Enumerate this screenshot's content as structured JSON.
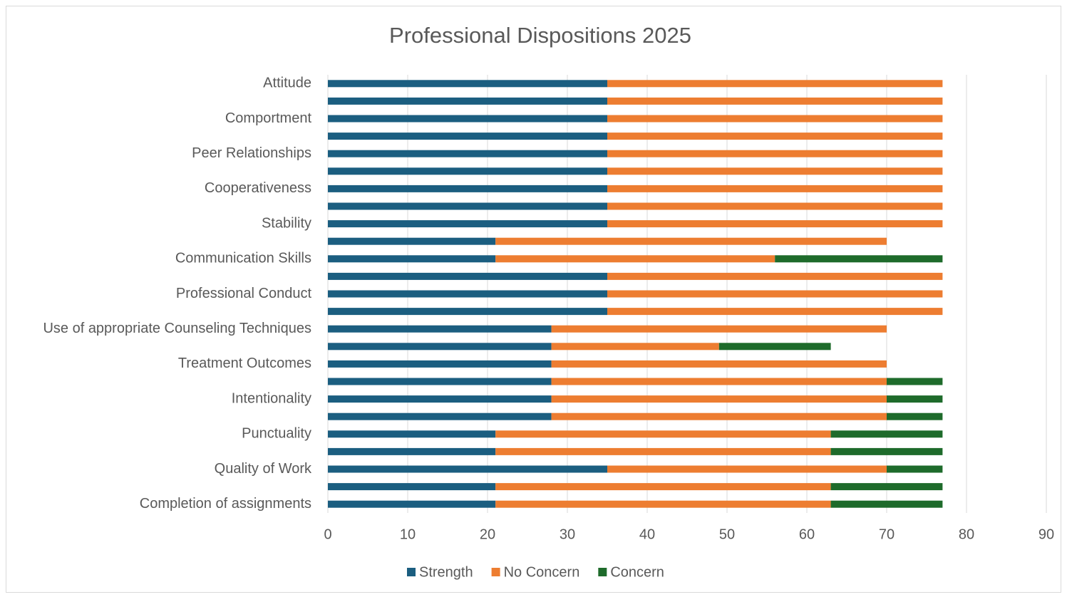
{
  "chart_data": {
    "type": "bar",
    "orientation": "horizontal",
    "stacked": true,
    "title": "Professional Dispositions 2025",
    "categories": [
      "Attitude",
      null,
      "Comportment",
      null,
      "Peer Relationships",
      null,
      "Cooperativeness",
      null,
      "Stability",
      null,
      "Communication Skills",
      null,
      "Professional Conduct",
      null,
      "Use of appropriate Counseling Techniques",
      null,
      "Treatment Outcomes",
      null,
      "Intentionality",
      null,
      "Punctuality",
      null,
      "Quality of Work",
      null,
      "Completion of assignments"
    ],
    "series": [
      {
        "name": "Strength",
        "color": "#1b5e80",
        "values": [
          35,
          35,
          35,
          35,
          35,
          35,
          35,
          35,
          35,
          21,
          21,
          35,
          35,
          35,
          28,
          28,
          28,
          28,
          28,
          28,
          21,
          21,
          35,
          21,
          21
        ]
      },
      {
        "name": "No Concern",
        "color": "#ed7d31",
        "values": [
          42,
          42,
          42,
          42,
          42,
          42,
          42,
          42,
          42,
          49,
          35,
          42,
          42,
          42,
          42,
          21,
          42,
          42,
          42,
          42,
          42,
          42,
          35,
          42,
          42
        ]
      },
      {
        "name": "Concern",
        "color": "#1e6b2b",
        "values": [
          0,
          0,
          0,
          0,
          0,
          0,
          0,
          0,
          0,
          0,
          21,
          0,
          0,
          0,
          0,
          14,
          0,
          7,
          7,
          7,
          14,
          14,
          7,
          14,
          14
        ]
      }
    ],
    "xlim": [
      0,
      90
    ],
    "xticks": [
      0,
      10,
      20,
      30,
      40,
      50,
      60,
      70,
      80,
      90
    ],
    "grid": true,
    "legend": "bottom"
  }
}
